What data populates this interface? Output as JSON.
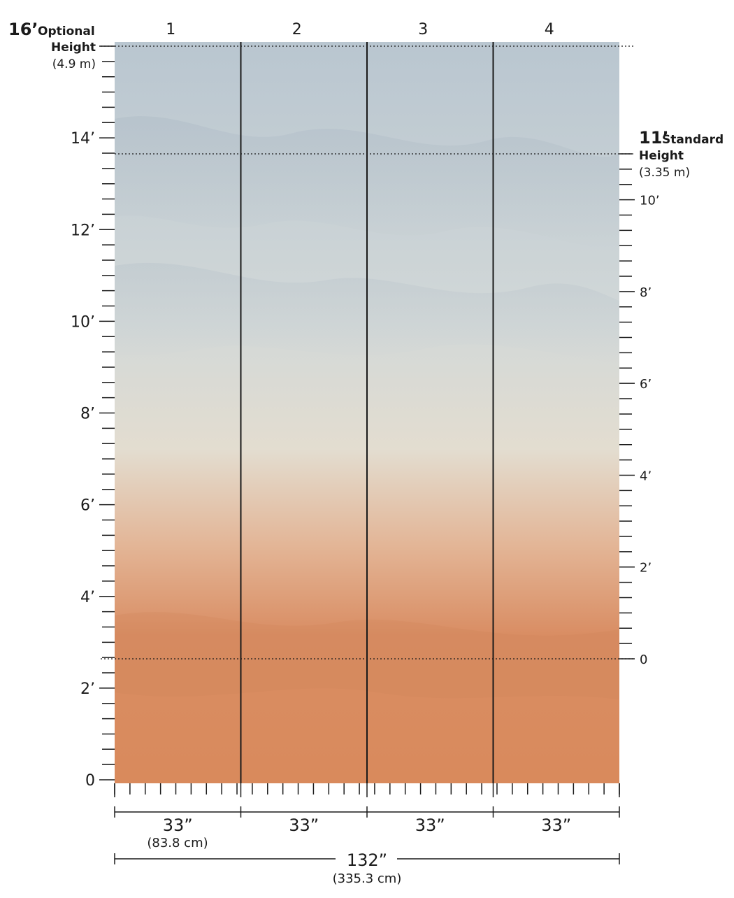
{
  "panels": [
    "1",
    "2",
    "3",
    "4"
  ],
  "optional_height": {
    "value": "16’",
    "label_line1": "Optional",
    "label_line2": "Height",
    "metric": "(4.9 m)"
  },
  "standard_height": {
    "value": "11’",
    "label_line1": "Standard",
    "label_line2": "Height",
    "metric": "(3.35 m)"
  },
  "left_scale_labels": [
    "0",
    "2’",
    "4’",
    "6’",
    "8’",
    "10’",
    "12’",
    "14’"
  ],
  "right_scale_labels": [
    "0",
    "2’",
    "4’",
    "6’",
    "8’",
    "10’"
  ],
  "panel_widths": [
    "33”",
    "33”",
    "33”",
    "33”"
  ],
  "first_panel_metric": "(83.8 cm)",
  "total_width": "132”",
  "total_width_metric": "(335.3 cm)",
  "colors": {
    "sky_top": "#b9c6d0",
    "sky_mid": "#d2d8d8",
    "cream": "#e3ddd0",
    "peach": "#e3b596",
    "orange": "#d98d63",
    "orange_bottom": "#d98a5c",
    "line": "#1a1a1a"
  }
}
